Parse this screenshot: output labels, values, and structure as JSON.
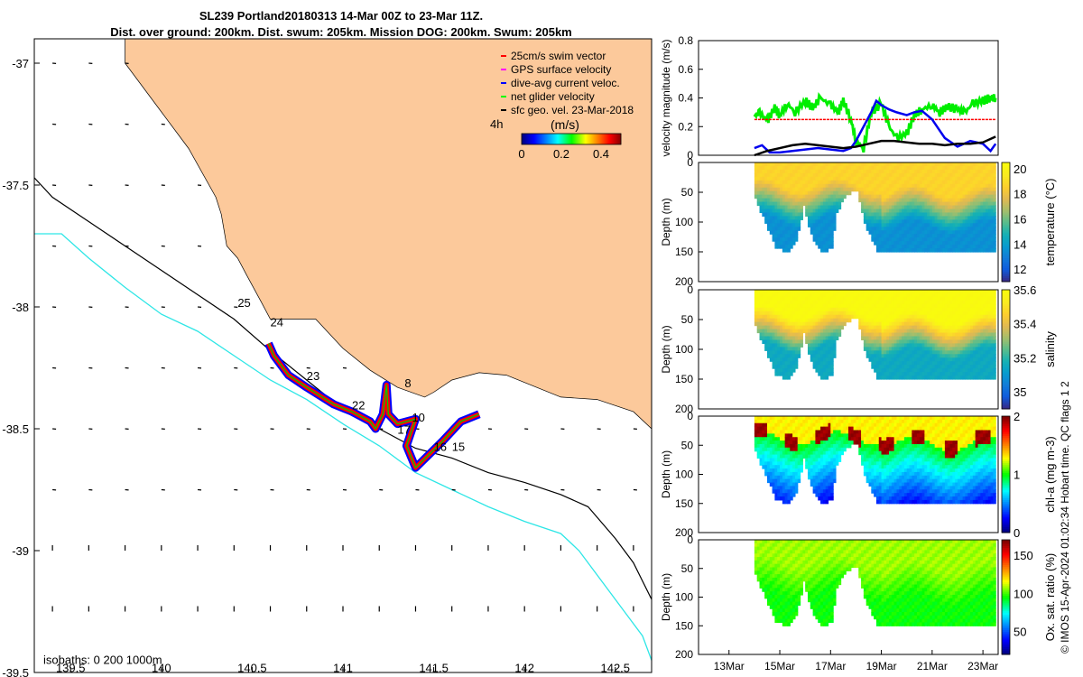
{
  "title": {
    "line1": "SL239 Portland20180313 14-Mar 00Z to 23-Mar 11Z.",
    "line2": "Dist. over ground: 200km. Dist. swum: 205km. Mission DOG: 200km. Swum: 205km"
  },
  "credit": "© IMOS 15-Apr-2024 01:02:34 Hobart time. QC flags 1  2",
  "chart_data": [
    {
      "type": "scatter",
      "name": "glider track map",
      "xlim": [
        139.3,
        142.7
      ],
      "ylim": [
        -39.5,
        -36.9
      ],
      "xticks": [
        139.5,
        140,
        140.5,
        141,
        141.5,
        142,
        142.5
      ],
      "xtick_labels": [
        "139.5",
        "140",
        "140.5",
        "141",
        "141.5",
        "142",
        "142.5"
      ],
      "yticks": [
        -37,
        -37.5,
        -38,
        -38.5,
        -39,
        -39.5
      ],
      "ytick_labels": [
        "-37",
        "-37.5",
        "-38",
        "-38.5",
        "-39",
        "-39.5"
      ],
      "legend": [
        {
          "label": "25cm/s swim vector",
          "color": "#ff0000"
        },
        {
          "label": "GPS surface velocity",
          "color": "#ff00ff"
        },
        {
          "label": "dive-avg current veloc.",
          "color": "#0000ff"
        },
        {
          "label": "net glider velocity",
          "color": "#00ff00"
        },
        {
          "label": "sfc geo. vel. 23-Mar-2018",
          "color": "#000000"
        }
      ],
      "arrow_scale_label": "4h",
      "colorbar": {
        "label": "(m/s)",
        "ticks": [
          "0",
          "0.2",
          "0.4"
        ],
        "range": [
          0,
          0.5
        ]
      },
      "isobath_label": "isobaths: 0   200  1000m",
      "colors": {
        "land": "#fcc99b",
        "isobath_200": "#000000",
        "isobath_1000": "#2ee6e6",
        "track_red": "#ff0000",
        "track_blue": "#0000ff"
      },
      "coastline": [
        [
          139.3,
          -36.9
        ],
        [
          139.8,
          -36.9
        ],
        [
          139.8,
          -37.0
        ],
        [
          140.0,
          -37.2
        ],
        [
          140.15,
          -37.35
        ],
        [
          140.3,
          -37.55
        ],
        [
          140.33,
          -37.62
        ],
        [
          140.36,
          -37.75
        ],
        [
          140.42,
          -37.8
        ],
        [
          140.47,
          -37.87
        ],
        [
          140.55,
          -37.98
        ],
        [
          140.6,
          -38.05
        ],
        [
          140.7,
          -38.05
        ],
        [
          140.85,
          -38.05
        ],
        [
          141.0,
          -38.17
        ],
        [
          141.15,
          -38.26
        ],
        [
          141.3,
          -38.33
        ],
        [
          141.45,
          -38.37
        ],
        [
          141.5,
          -38.35
        ],
        [
          141.6,
          -38.3
        ],
        [
          141.75,
          -38.27
        ],
        [
          141.9,
          -38.28
        ],
        [
          142.0,
          -38.31
        ],
        [
          142.2,
          -38.37
        ],
        [
          142.4,
          -38.38
        ],
        [
          142.6,
          -38.43
        ],
        [
          142.7,
          -38.5
        ]
      ],
      "isobath_200": [
        [
          139.3,
          -37.47
        ],
        [
          139.4,
          -37.55
        ],
        [
          139.6,
          -37.65
        ],
        [
          139.8,
          -37.75
        ],
        [
          140.0,
          -37.85
        ],
        [
          140.2,
          -37.95
        ],
        [
          140.4,
          -38.05
        ],
        [
          140.6,
          -38.18
        ],
        [
          140.8,
          -38.3
        ],
        [
          141.0,
          -38.42
        ],
        [
          141.2,
          -38.5
        ],
        [
          141.4,
          -38.58
        ],
        [
          141.6,
          -38.62
        ],
        [
          141.8,
          -38.68
        ],
        [
          142.0,
          -38.72
        ],
        [
          142.2,
          -38.77
        ],
        [
          142.35,
          -38.82
        ],
        [
          142.5,
          -38.95
        ],
        [
          142.6,
          -39.05
        ],
        [
          142.7,
          -39.2
        ]
      ],
      "isobath_1000": [
        [
          139.3,
          -37.7
        ],
        [
          139.45,
          -37.7
        ],
        [
          139.6,
          -37.8
        ],
        [
          139.8,
          -37.92
        ],
        [
          140.0,
          -38.03
        ],
        [
          140.2,
          -38.1
        ],
        [
          140.4,
          -38.2
        ],
        [
          140.6,
          -38.3
        ],
        [
          140.8,
          -38.38
        ],
        [
          141.0,
          -38.48
        ],
        [
          141.2,
          -38.57
        ],
        [
          141.4,
          -38.68
        ],
        [
          141.6,
          -38.75
        ],
        [
          141.8,
          -38.82
        ],
        [
          142.0,
          -38.88
        ],
        [
          142.2,
          -38.93
        ],
        [
          142.3,
          -39.0
        ],
        [
          142.45,
          -39.15
        ],
        [
          142.55,
          -39.25
        ],
        [
          142.65,
          -39.35
        ],
        [
          142.7,
          -39.45
        ]
      ],
      "track": [
        [
          140.59,
          -38.15
        ],
        [
          140.62,
          -38.2
        ],
        [
          140.7,
          -38.28
        ],
        [
          140.8,
          -38.33
        ],
        [
          140.95,
          -38.4
        ],
        [
          141.05,
          -38.43
        ],
        [
          141.15,
          -38.47
        ],
        [
          141.18,
          -38.5
        ],
        [
          141.22,
          -38.44
        ],
        [
          141.24,
          -38.32
        ],
        [
          141.25,
          -38.44
        ],
        [
          141.3,
          -38.48
        ],
        [
          141.4,
          -38.46
        ],
        [
          141.35,
          -38.57
        ],
        [
          141.4,
          -38.66
        ],
        [
          141.55,
          -38.55
        ],
        [
          141.65,
          -38.47
        ],
        [
          141.75,
          -38.44
        ]
      ],
      "track_labels": [
        {
          "text": "25",
          "lon": 140.42,
          "lat": -38.0
        },
        {
          "text": "24",
          "lon": 140.6,
          "lat": -38.08
        },
        {
          "text": "23",
          "lon": 140.8,
          "lat": -38.3
        },
        {
          "text": "22",
          "lon": 141.05,
          "lat": -38.42
        },
        {
          "text": "8",
          "lon": 141.34,
          "lat": -38.33
        },
        {
          "text": "10",
          "lon": 141.38,
          "lat": -38.47
        },
        {
          "text": "17",
          "lon": 141.3,
          "lat": -38.52
        },
        {
          "text": "16",
          "lon": 141.5,
          "lat": -38.59
        },
        {
          "text": "15",
          "lon": 141.6,
          "lat": -38.59
        }
      ]
    },
    {
      "type": "line",
      "name": "velocity magnitude",
      "xlim": [
        11.8,
        23.6
      ],
      "ylim": [
        0,
        0.8
      ],
      "yticks": [
        0,
        0.2,
        0.4,
        0.6,
        0.8
      ],
      "ytick_labels": [
        "0",
        "0.2",
        "0.4",
        "0.6",
        "0.8"
      ],
      "ylabel": "velocity magnitude (m/s)",
      "series": [
        {
          "name": "net glider velocity",
          "color": "#00ee00",
          "x": [
            14.0,
            14.2,
            14.5,
            14.8,
            15.0,
            15.3,
            15.6,
            16.0,
            16.3,
            16.6,
            17.0,
            17.3,
            17.5,
            17.8,
            18.0,
            18.3,
            18.6,
            19.0,
            19.3,
            19.6,
            20.0,
            20.3,
            20.6,
            21.0,
            21.3,
            21.6,
            22.0,
            22.3,
            22.6,
            23.0,
            23.3,
            23.5
          ],
          "values": [
            0.27,
            0.3,
            0.24,
            0.33,
            0.28,
            0.36,
            0.3,
            0.38,
            0.33,
            0.4,
            0.35,
            0.3,
            0.38,
            0.25,
            0.1,
            0.05,
            0.3,
            0.36,
            0.2,
            0.12,
            0.15,
            0.28,
            0.32,
            0.35,
            0.3,
            0.34,
            0.32,
            0.3,
            0.36,
            0.38,
            0.4,
            0.4
          ]
        },
        {
          "name": "swim speed",
          "color": "#ff0000",
          "x": [
            14.0,
            23.5
          ],
          "values": [
            0.25,
            0.25
          ]
        },
        {
          "name": "dive-avg current",
          "color": "#0000ee",
          "x": [
            14.0,
            14.3,
            14.6,
            15.0,
            15.5,
            16.0,
            16.5,
            17.0,
            17.5,
            17.8,
            18.0,
            18.3,
            18.6,
            18.8,
            19.0,
            19.3,
            19.6,
            20.0,
            20.3,
            20.6,
            21.0,
            21.5,
            22.0,
            22.5,
            23.0,
            23.3,
            23.5
          ],
          "values": [
            0.05,
            0.07,
            0.02,
            0.02,
            0.03,
            0.04,
            0.05,
            0.04,
            0.03,
            0.05,
            0.1,
            0.2,
            0.3,
            0.38,
            0.35,
            0.32,
            0.3,
            0.28,
            0.3,
            0.31,
            0.25,
            0.12,
            0.06,
            0.1,
            0.08,
            0.03,
            0.08
          ]
        },
        {
          "name": "sfc geo. vel.",
          "color": "#000000",
          "x": [
            14.0,
            14.5,
            15.0,
            15.5,
            16.0,
            16.5,
            17.0,
            17.5,
            18.0,
            18.5,
            19.0,
            19.5,
            20.0,
            20.5,
            21.0,
            21.5,
            22.0,
            22.5,
            23.0,
            23.5
          ],
          "values": [
            0.0,
            0.03,
            0.05,
            0.07,
            0.08,
            0.07,
            0.06,
            0.05,
            0.06,
            0.08,
            0.1,
            0.1,
            0.09,
            0.08,
            0.08,
            0.07,
            0.08,
            0.08,
            0.09,
            0.13
          ]
        }
      ]
    },
    {
      "type": "heatmap",
      "name": "temperature section",
      "ylabel": "Depth (m)",
      "yticks": [
        0,
        50,
        100,
        150,
        200
      ],
      "ytick_labels": [
        "0",
        "50",
        "100",
        "150",
        "200"
      ],
      "ylim": [
        200,
        0
      ],
      "xlim": [
        11.8,
        23.6
      ],
      "colorbar_label": "temperature (°C)",
      "colorbar_ticks": [
        "12",
        "14",
        "16",
        "18",
        "20"
      ],
      "colorbar_range": [
        11,
        20.5
      ],
      "data_range": [
        12,
        19
      ],
      "surface_value": 18.8,
      "deep_value": 13.5
    },
    {
      "type": "heatmap",
      "name": "salinity section",
      "ylabel": "Depth (m)",
      "yticks": [
        0,
        50,
        100,
        150,
        200
      ],
      "ytick_labels": [
        "0",
        "50",
        "100",
        "150",
        "200"
      ],
      "ylim": [
        200,
        0
      ],
      "xlim": [
        11.8,
        23.6
      ],
      "colorbar_label": "salinity",
      "colorbar_ticks": [
        "35",
        "35.2",
        "35.4",
        "35.6"
      ],
      "colorbar_range": [
        34.9,
        35.6
      ],
      "surface_value": 35.6,
      "deep_value": 35.15
    },
    {
      "type": "heatmap",
      "name": "chlorophyll section",
      "ylabel": "Depth (m)",
      "yticks": [
        0,
        50,
        100,
        150,
        200
      ],
      "ytick_labels": [
        "0",
        "50",
        "100",
        "150",
        "200"
      ],
      "ylim": [
        200,
        0
      ],
      "xlim": [
        11.8,
        23.6
      ],
      "colorbar_label": "chl-a (mg m-3)",
      "colorbar_ticks": [
        "0",
        "1",
        "2"
      ],
      "colorbar_range": [
        0,
        2
      ],
      "surface_value": 1.2,
      "deep_value": 0.3
    },
    {
      "type": "heatmap",
      "name": "oxygen saturation section",
      "ylabel": "Depth (m)",
      "yticks": [
        0,
        50,
        100,
        150,
        200
      ],
      "ytick_labels": [
        "0",
        "50",
        "100",
        "150",
        "200"
      ],
      "ylim": [
        200,
        0
      ],
      "xlim": [
        11.8,
        23.6
      ],
      "colorbar_label": "Ox. sat. ratio (%)",
      "colorbar_ticks": [
        "50",
        "100",
        "150"
      ],
      "colorbar_range": [
        20,
        170
      ],
      "surface_value": 108,
      "deep_value": 95
    },
    {
      "type": "axis",
      "name": "time axis",
      "xticks": [
        13,
        15,
        17,
        19,
        21,
        23
      ],
      "xtick_labels": [
        "13Mar",
        "15Mar",
        "17Mar",
        "19Mar",
        "21Mar",
        "23Mar"
      ]
    }
  ]
}
